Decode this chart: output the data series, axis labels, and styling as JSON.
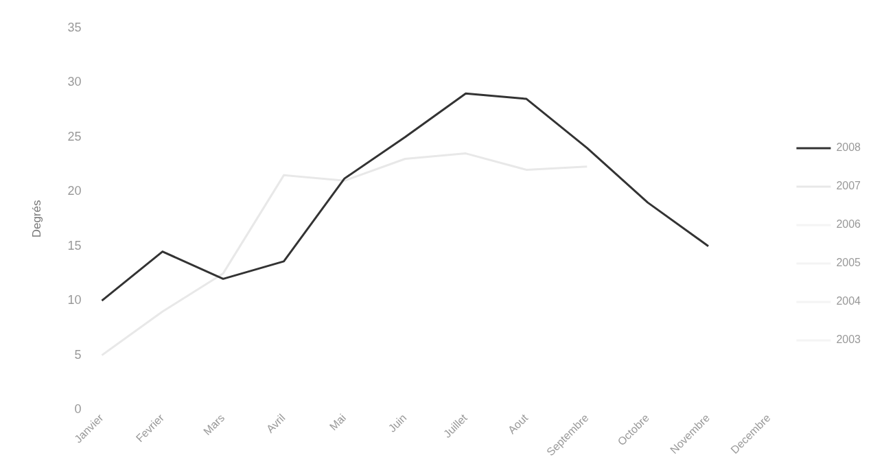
{
  "chart_data": {
    "type": "line",
    "ylabel": "Degrés",
    "categories": [
      "Janvier",
      "Fevrier",
      "Mars",
      "Avril",
      "Mai",
      "Juin",
      "Juillet",
      "Aout",
      "Septembre",
      "Octobre",
      "Novembre",
      "Decembre"
    ],
    "series": [
      {
        "name": "2008",
        "color": "#333333",
        "values": [
          10,
          14.5,
          12,
          13.6,
          21.2,
          25,
          29,
          28.5,
          24,
          19,
          15,
          null
        ]
      },
      {
        "name": "2007",
        "color": "#e8e8e8",
        "values": [
          5,
          9,
          12.5,
          21.5,
          21,
          23,
          23.5,
          22,
          22.3,
          null,
          null,
          null
        ]
      },
      {
        "name": "2006",
        "color": "#f4f4f4",
        "values": [
          null,
          null,
          null,
          null,
          null,
          null,
          null,
          null,
          null,
          null,
          null,
          null
        ]
      },
      {
        "name": "2005",
        "color": "#f4f4f4",
        "values": [
          null,
          null,
          null,
          null,
          null,
          null,
          null,
          null,
          null,
          null,
          null,
          null
        ]
      },
      {
        "name": "2004",
        "color": "#f4f4f4",
        "values": [
          null,
          null,
          null,
          null,
          null,
          null,
          null,
          null,
          null,
          null,
          null,
          null
        ]
      },
      {
        "name": "2003",
        "color": "#f4f4f4",
        "values": [
          null,
          null,
          null,
          null,
          null,
          null,
          null,
          null,
          null,
          null,
          null,
          null
        ]
      }
    ],
    "ylim": [
      0,
      35
    ],
    "yticks": [
      0,
      5,
      10,
      15,
      20,
      25,
      30,
      35
    ],
    "grid": false,
    "legend": "right",
    "marker": "none"
  }
}
